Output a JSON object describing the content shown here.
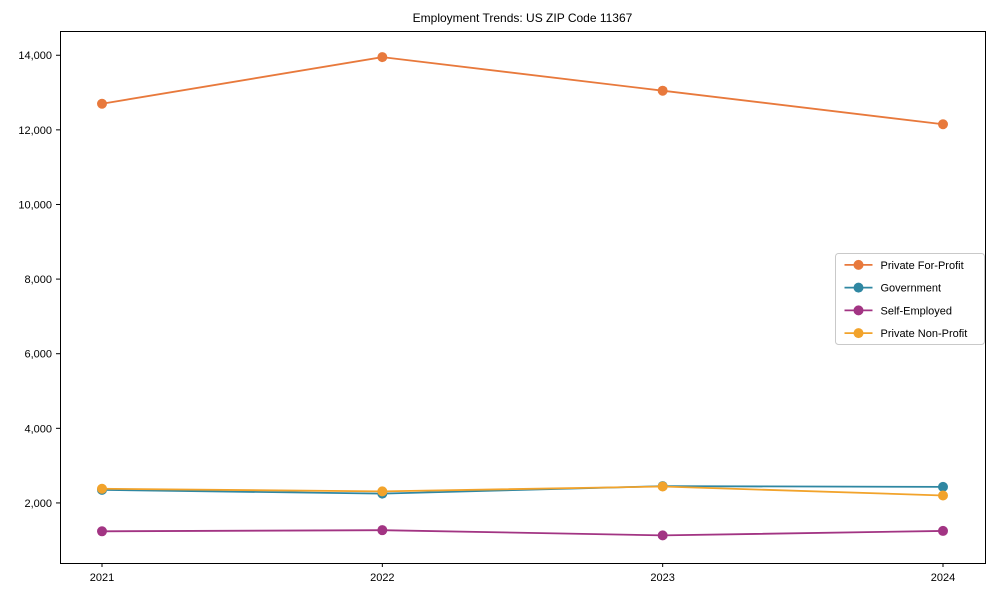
{
  "title": "Employment Trends: US ZIP Code 11367",
  "chart_data": {
    "type": "line",
    "title": "Employment Trends: US ZIP Code 11367",
    "xlabel": "",
    "ylabel": "",
    "categories": [
      "2021",
      "2022",
      "2023",
      "2024"
    ],
    "series": [
      {
        "name": "Private For-Profit",
        "color": "#e8793c",
        "values": [
          12700,
          13950,
          13050,
          12150
        ]
      },
      {
        "name": "Government",
        "color": "#2f87a2",
        "values": [
          2350,
          2250,
          2450,
          2430
        ]
      },
      {
        "name": "Self-Employed",
        "color": "#a23483",
        "values": [
          1240,
          1270,
          1130,
          1250
        ]
      },
      {
        "name": "Private Non-Profit",
        "color": "#f2a32b",
        "values": [
          2380,
          2310,
          2440,
          2200
        ]
      }
    ],
    "yticks": [
      2000,
      4000,
      6000,
      8000,
      10000,
      12000,
      14000
    ],
    "ytick_labels": [
      "2,000",
      "4,000",
      "6,000",
      "8,000",
      "10,000",
      "12,000",
      "14,000"
    ],
    "ylim": [
      390,
      14650
    ],
    "grid": false,
    "legend_position": "center-right",
    "marker": "circle",
    "axis_color": "#000000",
    "legend_border_color": "#c9c9c9"
  }
}
